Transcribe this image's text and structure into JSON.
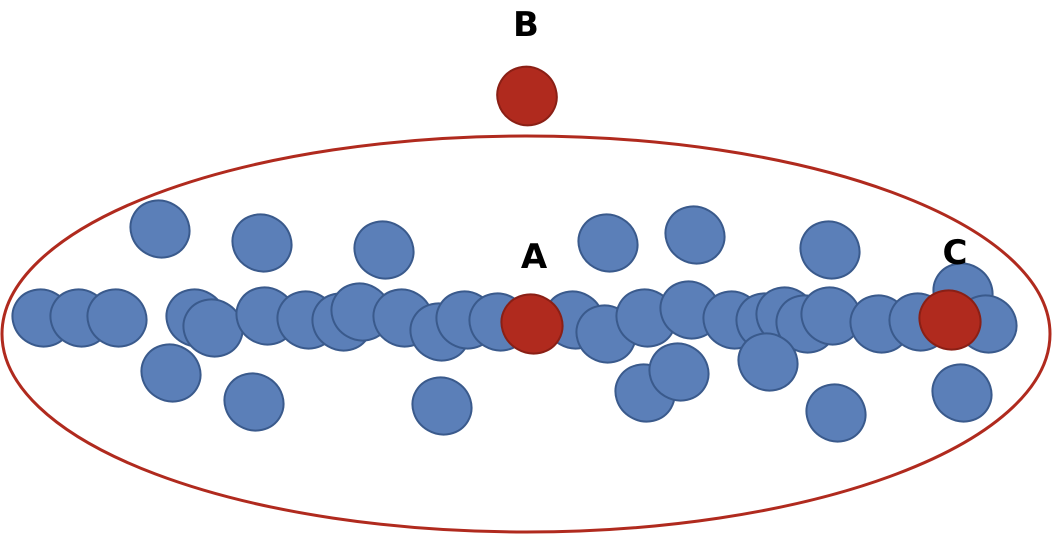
{
  "labels": {
    "a": "A",
    "b": "B",
    "c": "C"
  },
  "colors": {
    "cluster_outline": "#b02a1e",
    "normal_point_fill": "#5b7fb8",
    "normal_point_stroke": "#3a5a8c",
    "outlier_point_fill": "#b02a1e",
    "outlier_point_stroke": "#8a1f15"
  }
}
